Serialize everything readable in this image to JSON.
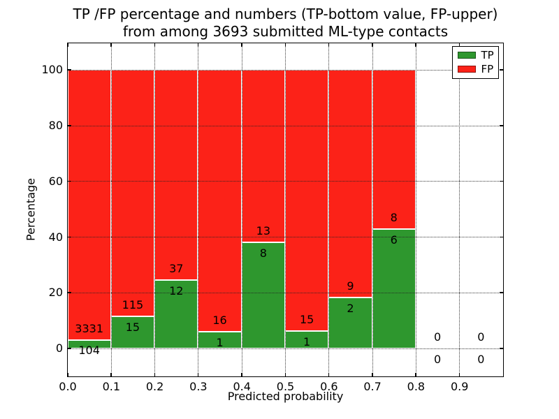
{
  "title": {
    "line1": "TP /FP percentage and numbers (TP-bottom value, FP-upper)",
    "line2": "from among 3693 submitted ML-type contacts"
  },
  "axes": {
    "xlabel": "Predicted probability",
    "ylabel": "Percentage"
  },
  "legend": {
    "items": [
      {
        "label": "TP",
        "color": "#2e972e"
      },
      {
        "label": "FP",
        "color": "#fc2218"
      }
    ]
  },
  "colors": {
    "tp_green": "#2e972e",
    "fp_red": "#fc2218",
    "grid": "#222222",
    "bar_edge": "#ffffff"
  },
  "chart_data": {
    "type": "bar",
    "stacked": true,
    "normalized": "each bin scaled to 100%",
    "title": "TP /FP percentage and numbers (TP-bottom value, FP-upper) from among 3693 submitted ML-type contacts",
    "xlabel": "Predicted probability",
    "ylabel": "Percentage",
    "total_contacts": 3693,
    "bin_width": 0.1,
    "bin_starts": [
      0.0,
      0.1,
      0.2,
      0.3,
      0.4,
      0.5,
      0.6,
      0.7,
      0.8,
      0.9
    ],
    "series": [
      {
        "name": "TP",
        "color": "#2e972e",
        "counts": [
          104,
          15,
          12,
          1,
          8,
          1,
          2,
          6,
          0,
          0
        ]
      },
      {
        "name": "FP",
        "color": "#fc2218",
        "counts": [
          3331,
          115,
          37,
          16,
          13,
          15,
          9,
          8,
          0,
          0
        ]
      }
    ],
    "tp_percent_per_bin": [
      3.03,
      11.54,
      24.49,
      5.88,
      38.1,
      6.25,
      18.18,
      42.86,
      0,
      0
    ],
    "xticks": [
      "0.0",
      "0.1",
      "0.2",
      "0.3",
      "0.4",
      "0.5",
      "0.6",
      "0.7",
      "0.8",
      "0.9"
    ],
    "yticks": [
      0,
      20,
      40,
      60,
      80,
      100
    ],
    "xlim": [
      0.0,
      1.0
    ],
    "ylim": [
      -10,
      109.6
    ],
    "grid": "dotted, drawn above bars",
    "legend_position": "upper right"
  }
}
